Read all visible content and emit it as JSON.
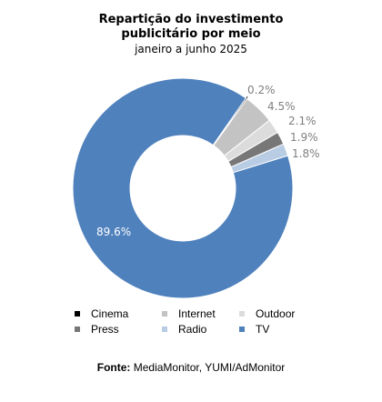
{
  "chart_data": {
    "type": "pie",
    "title": "Repartição do investimento publicitário por meio",
    "title_line1": "Repartição do investimento",
    "title_line2": "publicitário por meio",
    "subtitle": "janeiro a junho 2025",
    "slices": [
      {
        "name": "Cinema",
        "value": 0.2,
        "label": "0.2%",
        "color": "#000000"
      },
      {
        "name": "Internet",
        "value": 4.5,
        "label": "4.5%",
        "color": "#c3c3c3"
      },
      {
        "name": "Outdoor",
        "value": 2.1,
        "label": "2.1%",
        "color": "#dcdcdc"
      },
      {
        "name": "Press",
        "value": 1.9,
        "label": "1.9%",
        "color": "#777777"
      },
      {
        "name": "Radio",
        "value": 1.8,
        "label": "1.8%",
        "color": "#b8cce4"
      },
      {
        "name": "TV",
        "value": 89.6,
        "label": "89.6%",
        "color": "#4f81bd"
      }
    ],
    "donut": true,
    "legend_position": "bottom"
  },
  "source": {
    "label": "Fonte:",
    "text": "MediaMonitor, YUMI/AdMonitor"
  }
}
